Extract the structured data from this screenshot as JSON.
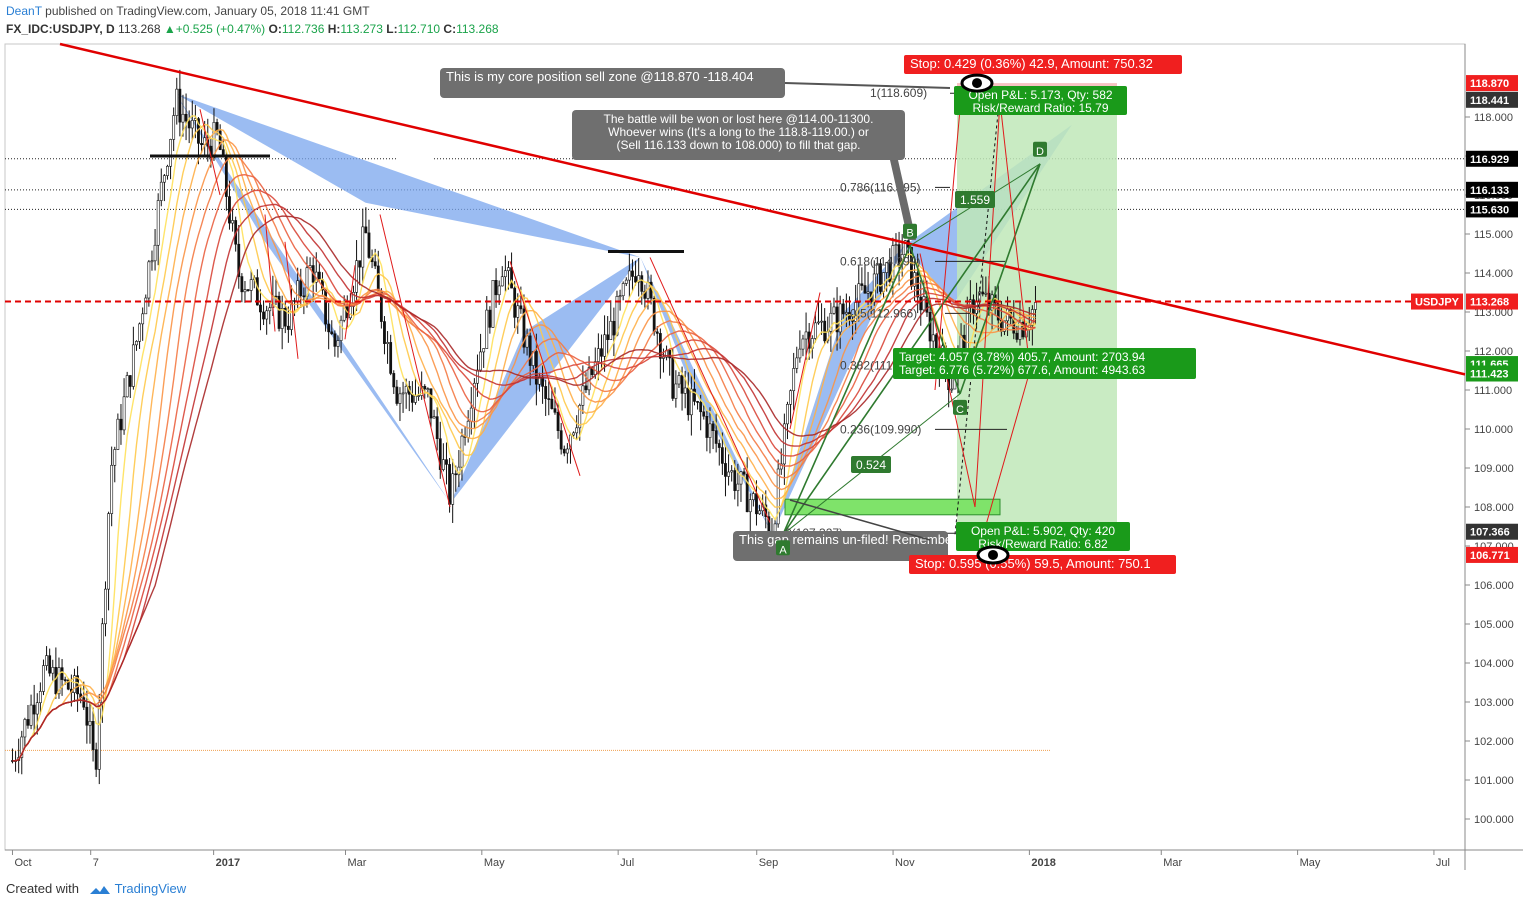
{
  "header": {
    "author": "DeanT",
    "published": " published on TradingView.com, January 05, 2018 11:41 GMT",
    "symbol": "FX_IDC:USDJPY, D",
    "last": "113.268",
    "change": "+0.525 (+0.47%)",
    "open_label": "O:",
    "open": "112.736",
    "high_label": "H:",
    "high": "113.273",
    "low_label": "L:",
    "low": "112.710",
    "close_label": "C:",
    "close": "113.268"
  },
  "footer": {
    "created_with": "Created with",
    "brand": "TradingView"
  },
  "colors": {
    "up": "#1aa34a",
    "down": "#e01b1b",
    "harmonic": "#7aa6ee",
    "profit": "#bfe8b8",
    "label_green": "#1a9a1a",
    "label_red": "#f01f1f"
  },
  "chart_data": {
    "type": "candlestick",
    "title": "",
    "ylim": [
      99.3,
      119.4
    ],
    "y_ticks": [
      "100.000",
      "101.000",
      "102.000",
      "103.000",
      "104.000",
      "105.000",
      "106.000",
      "107.000",
      "108.000",
      "109.000",
      "110.000",
      "111.000",
      "112.000",
      "113.000",
      "114.000",
      "115.000",
      "116.000",
      "117.000",
      "118.000"
    ],
    "x_ticks": [
      "Oct",
      "7",
      "2017",
      "Mar",
      "May",
      "Jul",
      "Sep",
      "Nov",
      "2018",
      "Mar",
      "May",
      "Jul"
    ],
    "series_close": [
      [
        "2016-10-03",
        101.5
      ],
      [
        "2016-10-17",
        103.8
      ],
      [
        "2016-11-04",
        103.1
      ],
      [
        "2016-11-09",
        101.2
      ],
      [
        "2016-11-16",
        109.0
      ],
      [
        "2016-11-28",
        112.4
      ],
      [
        "2016-12-15",
        118.4
      ],
      [
        "2016-12-27",
        117.2
      ],
      [
        "2017-01-03",
        117.5
      ],
      [
        "2017-01-12",
        114.0
      ],
      [
        "2017-01-24",
        113.2
      ],
      [
        "2017-02-03",
        112.8
      ],
      [
        "2017-02-14",
        114.2
      ],
      [
        "2017-02-24",
        112.1
      ],
      [
        "2017-03-10",
        115.0
      ],
      [
        "2017-03-24",
        111.0
      ],
      [
        "2017-04-07",
        110.8
      ],
      [
        "2017-04-17",
        108.2
      ],
      [
        "2017-04-28",
        111.5
      ],
      [
        "2017-05-10",
        114.3
      ],
      [
        "2017-05-26",
        111.2
      ],
      [
        "2017-06-07",
        109.6
      ],
      [
        "2017-06-20",
        111.5
      ],
      [
        "2017-07-10",
        114.3
      ],
      [
        "2017-07-25",
        111.2
      ],
      [
        "2017-08-08",
        110.3
      ],
      [
        "2017-08-21",
        108.8
      ],
      [
        "2017-09-08",
        107.5
      ],
      [
        "2017-09-20",
        112.4
      ],
      [
        "2017-10-06",
        112.8
      ],
      [
        "2017-10-20",
        113.5
      ],
      [
        "2017-11-06",
        114.6
      ],
      [
        "2017-11-16",
        112.8
      ],
      [
        "2017-11-27",
        111.2
      ],
      [
        "2017-12-08",
        113.5
      ],
      [
        "2017-12-20",
        112.8
      ],
      [
        "2017-12-29",
        112.7
      ],
      [
        "2018-01-05",
        113.268
      ]
    ],
    "price_labels": [
      {
        "value": "118.870",
        "color": "#f01f1f"
      },
      {
        "value": "118.441",
        "color": "#333333"
      },
      {
        "value": "116.929",
        "color": "#000000"
      },
      {
        "value": "116.133",
        "color": "#000000"
      },
      {
        "value": "115.630",
        "color": "#000000"
      },
      {
        "value": "113.268",
        "color": "#f01f1f",
        "tag": "USDJPY"
      },
      {
        "value": "111.665",
        "color": "#1a9a1a"
      },
      {
        "value": "111.423",
        "color": "#1a9a1a"
      },
      {
        "value": "107.366",
        "color": "#333333"
      },
      {
        "value": "106.771",
        "color": "#f01f1f"
      }
    ],
    "fib_levels": [
      {
        "label": "0.786(116.195)",
        "price": 116.195
      },
      {
        "label": "0.618(114.299)",
        "price": 114.299
      },
      {
        "label": "0.5(112.966)",
        "price": 112.966
      },
      {
        "label": "0.382(111.63)",
        "price": 111.63
      },
      {
        "label": "0.236(109.990)",
        "price": 109.99
      },
      {
        "label": "0(107.327)",
        "price": 107.327
      },
      {
        "label": "1(118.609)",
        "price": 118.609
      }
    ],
    "harmonic_points": [
      "A",
      "B",
      "C",
      "D"
    ],
    "ratios": [
      "1.559",
      "0.524"
    ],
    "annotations": {
      "sell_zone": "This is my core position sell zone @118.870 -118.404",
      "battle": [
        "The battle will be won or lost here @114.00-11300.",
        "Whoever wins (It's a long to the 118.8-119.00.) or",
        "(Sell 116.133 down to 108.000) to fill that gap."
      ],
      "gap": "This gap remains un-filed! Remember",
      "short_stop": "Stop: 0.429 (0.36%) 42.9, Amount: 750.32",
      "short_pnl": "Open P&L: 5.173, Qty: 582",
      "short_rr": "Risk/Reward Ratio: 15.79",
      "target1": "Target: 4.057 (3.78%) 405.7, Amount: 2703.94",
      "target2": "Target: 6.776 (5.72%) 677.6, Amount: 4943.63",
      "long_pnl": "Open P&L: 5.902, Qty: 420",
      "long_rr": "Risk/Reward Ratio: 6.82",
      "long_stop": "Stop: 0.595 (0.55%) 59.5, Amount: 750.1"
    }
  }
}
